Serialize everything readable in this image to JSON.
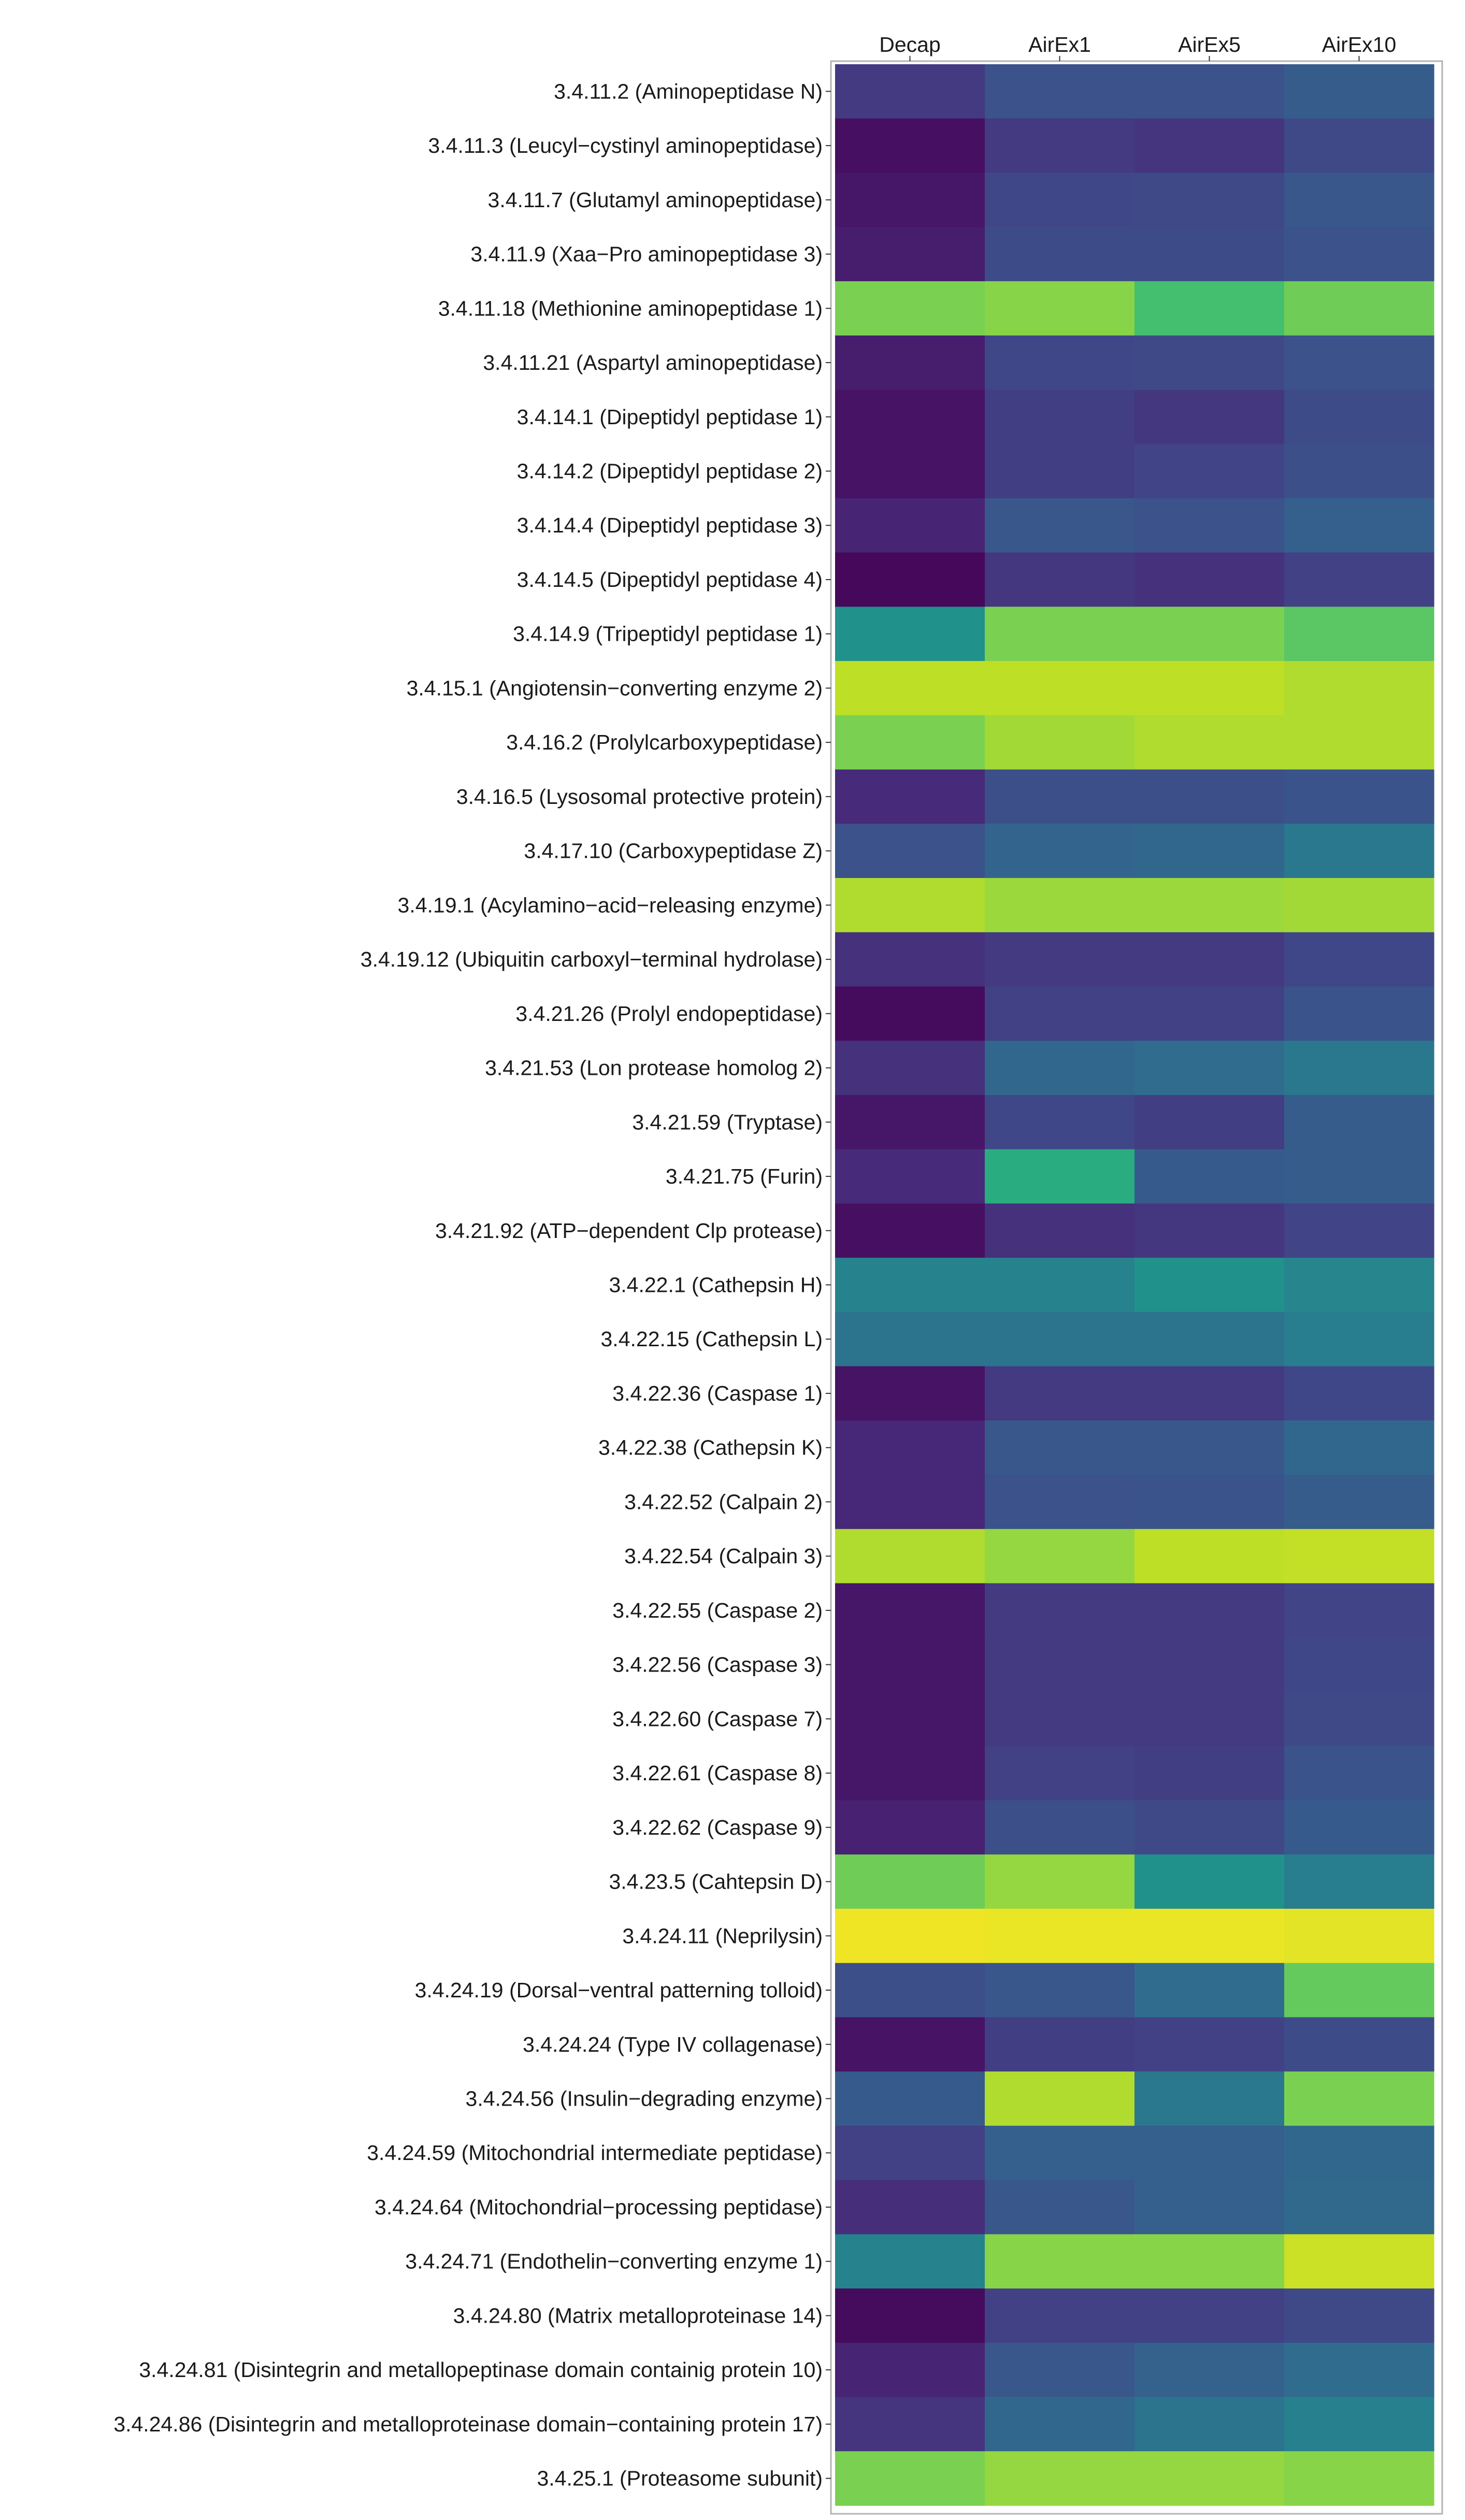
{
  "chart_data": {
    "type": "heatmap",
    "title": "",
    "xlabel": "",
    "ylabel": "",
    "legend": "none",
    "grid": false,
    "columns": [
      "Decap",
      "AirEx1",
      "AirEx5",
      "AirEx10"
    ],
    "rows": [
      "3.4.11.2 (Aminopeptidase N)",
      "3.4.11.3 (Leucyl−cystinyl aminopeptidase)",
      "3.4.11.7 (Glutamyl aminopeptidase)",
      "3.4.11.9 (Xaa−Pro aminopeptidase 3)",
      "3.4.11.18 (Methionine aminopeptidase 1)",
      "3.4.11.21 (Aspartyl aminopeptidase)",
      "3.4.14.1 (Dipeptidyl peptidase 1)",
      "3.4.14.2 (Dipeptidyl peptidase 2)",
      "3.4.14.4 (Dipeptidyl peptidase 3)",
      "3.4.14.5 (Dipeptidyl peptidase 4)",
      "3.4.14.9 (Tripeptidyl peptidase 1)",
      "3.4.15.1 (Angiotensin−converting enzyme 2)",
      "3.4.16.2 (Prolylcarboxypeptidase)",
      "3.4.16.5 (Lysosomal protective protein)",
      "3.4.17.10 (Carboxypeptidase Z)",
      "3.4.19.1 (Acylamino−acid−releasing enzyme)",
      "3.4.19.12 (Ubiquitin carboxyl−terminal hydrolase)",
      "3.4.21.26 (Prolyl endopeptidase)",
      "3.4.21.53 (Lon protease homolog 2)",
      "3.4.21.59 (Tryptase)",
      "3.4.21.75 (Furin)",
      "3.4.21.92 (ATP−dependent Clp protease)",
      "3.4.22.1 (Cathepsin H)",
      "3.4.22.15 (Cathepsin L)",
      "3.4.22.36 (Caspase 1)",
      "3.4.22.38 (Cathepsin K)",
      "3.4.22.52 (Calpain 2)",
      "3.4.22.54 (Calpain 3)",
      "3.4.22.55 (Caspase 2)",
      "3.4.22.56 (Caspase 3)",
      "3.4.22.60 (Caspase 7)",
      "3.4.22.61 (Caspase 8)",
      "3.4.22.62 (Caspase 9)",
      "3.4.23.5 (Cahtepsin D)",
      "3.4.24.11 (Neprilysin)",
      "3.4.24.19 (Dorsal−ventral patterning tolloid)",
      "3.4.24.24 (Type IV collagenase)",
      "3.4.24.56 (Insulin−degrading enzyme)",
      "3.4.24.59 (Mitochondrial intermediate peptidase)",
      "3.4.24.64 (Mitochondrial−processing peptidase)",
      "3.4.24.71 (Endothelin−converting enzyme 1)",
      "3.4.24.80 (Matrix metalloproteinase 14)",
      "3.4.24.81 (Disintegrin and metallopeptinase domain containig protein 10)",
      "3.4.24.86 (Disintegrin and metalloproteinase domain−containing protein 17)",
      "3.4.25.1 (Proteasome subunit)"
    ],
    "scale": "viridis (relative, 0 = dark purple, 1 = yellow)",
    "values": [
      [
        0.17,
        0.25,
        0.25,
        0.29
      ],
      [
        0.04,
        0.17,
        0.15,
        0.22
      ],
      [
        0.06,
        0.21,
        0.22,
        0.27
      ],
      [
        0.08,
        0.23,
        0.23,
        0.25
      ],
      [
        0.8,
        0.82,
        0.7,
        0.78
      ],
      [
        0.08,
        0.21,
        0.22,
        0.25
      ],
      [
        0.05,
        0.18,
        0.16,
        0.23
      ],
      [
        0.05,
        0.18,
        0.2,
        0.24
      ],
      [
        0.1,
        0.27,
        0.25,
        0.3
      ],
      [
        0.02,
        0.16,
        0.14,
        0.19
      ],
      [
        0.5,
        0.8,
        0.8,
        0.74
      ],
      [
        0.9,
        0.9,
        0.9,
        0.88
      ],
      [
        0.8,
        0.86,
        0.88,
        0.88
      ],
      [
        0.12,
        0.24,
        0.24,
        0.26
      ],
      [
        0.25,
        0.32,
        0.33,
        0.4
      ],
      [
        0.88,
        0.85,
        0.85,
        0.86
      ],
      [
        0.14,
        0.17,
        0.17,
        0.21
      ],
      [
        0.03,
        0.19,
        0.19,
        0.26
      ],
      [
        0.14,
        0.33,
        0.35,
        0.4
      ],
      [
        0.06,
        0.21,
        0.18,
        0.29
      ],
      [
        0.12,
        0.62,
        0.28,
        0.29
      ],
      [
        0.04,
        0.14,
        0.16,
        0.2
      ],
      [
        0.44,
        0.44,
        0.5,
        0.45
      ],
      [
        0.38,
        0.38,
        0.38,
        0.42
      ],
      [
        0.05,
        0.17,
        0.17,
        0.21
      ],
      [
        0.11,
        0.27,
        0.27,
        0.33
      ],
      [
        0.11,
        0.25,
        0.26,
        0.29
      ],
      [
        0.88,
        0.84,
        0.9,
        0.91
      ],
      [
        0.06,
        0.17,
        0.17,
        0.2
      ],
      [
        0.06,
        0.17,
        0.17,
        0.21
      ],
      [
        0.06,
        0.17,
        0.17,
        0.22
      ],
      [
        0.06,
        0.19,
        0.18,
        0.26
      ],
      [
        0.09,
        0.24,
        0.22,
        0.28
      ],
      [
        0.78,
        0.84,
        0.5,
        0.42
      ],
      [
        0.98,
        0.97,
        0.97,
        0.96
      ],
      [
        0.24,
        0.27,
        0.35,
        0.76
      ],
      [
        0.05,
        0.18,
        0.19,
        0.23
      ],
      [
        0.28,
        0.88,
        0.4,
        0.8
      ],
      [
        0.19,
        0.3,
        0.3,
        0.33
      ],
      [
        0.13,
        0.27,
        0.3,
        0.34
      ],
      [
        0.44,
        0.82,
        0.82,
        0.92
      ],
      [
        0.03,
        0.19,
        0.19,
        0.22
      ],
      [
        0.1,
        0.27,
        0.31,
        0.35
      ],
      [
        0.15,
        0.33,
        0.38,
        0.43
      ],
      [
        0.8,
        0.84,
        0.84,
        0.82
      ]
    ]
  }
}
